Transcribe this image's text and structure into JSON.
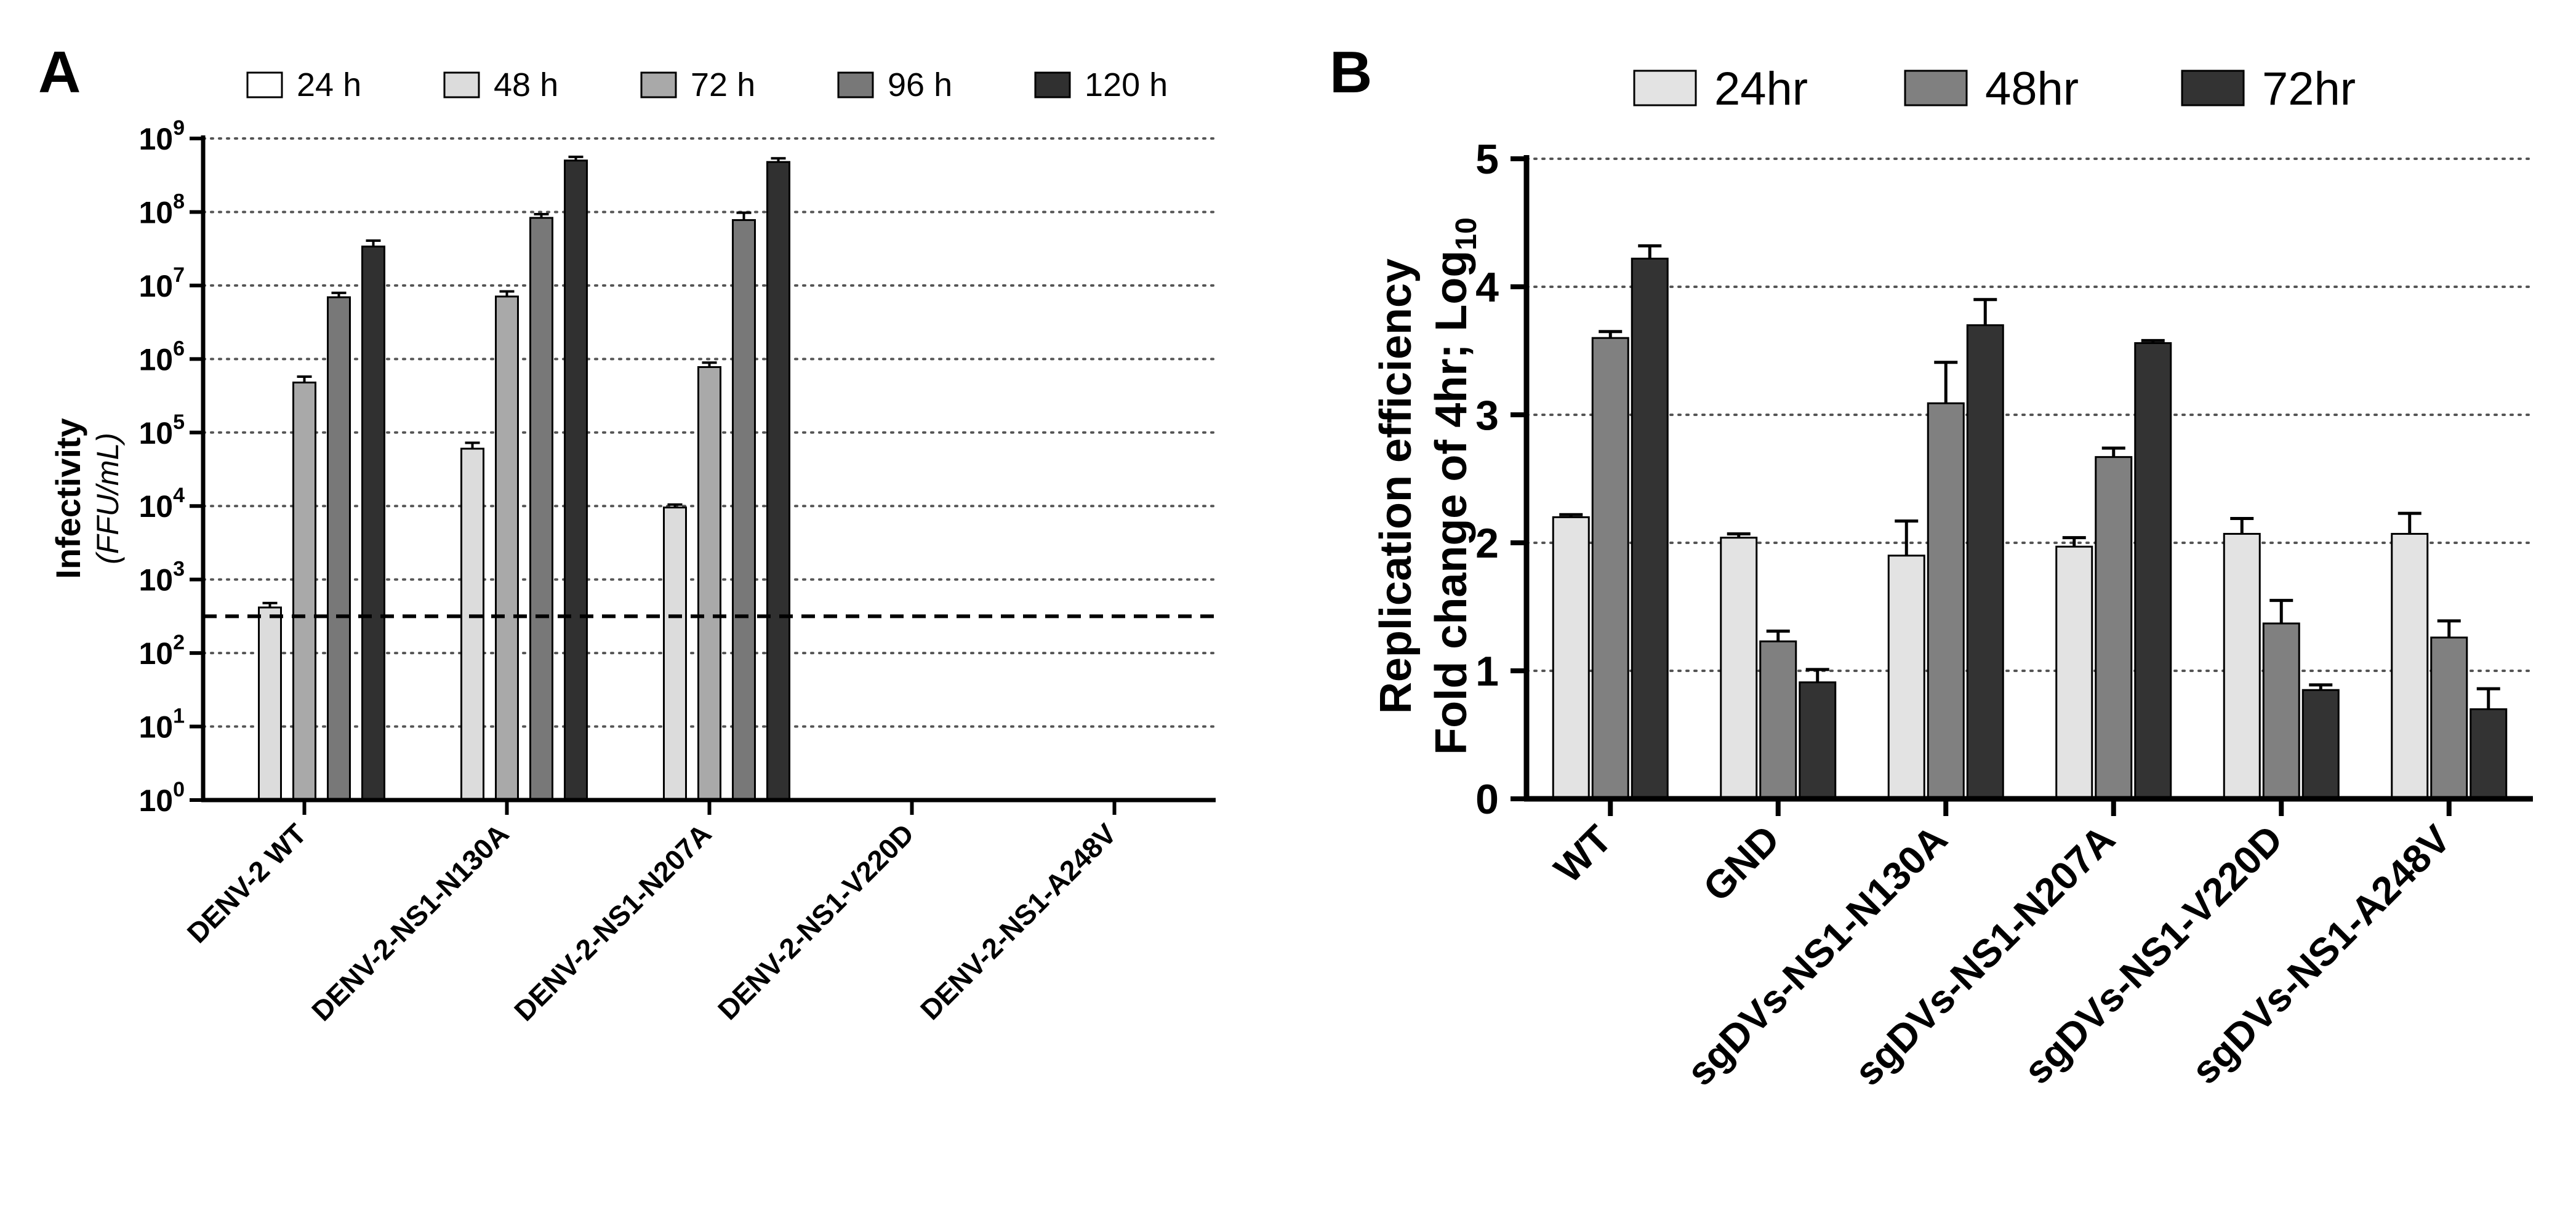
{
  "colors": {
    "c24": "#ffffff",
    "c48": "#dcdcdc",
    "c72": "#a9a9a9",
    "c96": "#787878",
    "c120": "#303030",
    "b24": "#e3e3e3",
    "b48": "#808080",
    "b72": "#333333",
    "axis": "#000000",
    "grid": "#555555"
  },
  "chart_data": [
    {
      "panel": "A",
      "type": "bar",
      "scale": "log10",
      "ylabel": "Infectivity",
      "ylabel_units": "(FFU/mL)",
      "ylim": [
        0,
        9
      ],
      "yticks": [
        "10",
        "10",
        "10",
        "10",
        "10",
        "10",
        "10",
        "10",
        "10",
        "10"
      ],
      "ytick_exps": [
        "0",
        "1",
        "2",
        "3",
        "4",
        "5",
        "6",
        "7",
        "8",
        "9"
      ],
      "grid": true,
      "detection_limit_log10": 2.5,
      "categories": [
        "DENV-2 WT",
        "DENV-2-NS1-N130A",
        "DENV-2-NS1-N207A",
        "DENV-2-NS1-V220D",
        "DENV-2-NS1-A248V"
      ],
      "series": [
        {
          "name": "24 h",
          "log10_values": [
            null,
            null,
            null,
            null,
            null
          ],
          "log10_errors": [
            null,
            null,
            null,
            null,
            null
          ]
        },
        {
          "name": "48 h",
          "log10_values": [
            2.62,
            4.78,
            3.98,
            null,
            null
          ],
          "log10_errors": [
            0.06,
            0.08,
            0.04,
            null,
            null
          ]
        },
        {
          "name": "72 h",
          "log10_values": [
            5.68,
            6.85,
            5.89,
            null,
            null
          ],
          "log10_errors": [
            0.08,
            0.07,
            0.06,
            null,
            null
          ]
        },
        {
          "name": "96 h",
          "log10_values": [
            6.84,
            7.92,
            7.89,
            null,
            null
          ],
          "log10_errors": [
            0.06,
            0.05,
            0.1,
            null,
            null
          ]
        },
        {
          "name": "120 h",
          "log10_values": [
            7.53,
            8.7,
            8.68,
            null,
            null
          ],
          "log10_errors": [
            0.08,
            0.05,
            0.05,
            null,
            null
          ]
        }
      ],
      "legend_position": "top"
    },
    {
      "panel": "B",
      "type": "bar",
      "ylabel_line1": "Replication efficiency",
      "ylabel_line2": "Fold change of 4hr;  Log",
      "ylabel_sub": "10",
      "ylim": [
        0,
        5
      ],
      "yticks": [
        "0",
        "1",
        "2",
        "3",
        "4",
        "5"
      ],
      "grid": true,
      "categories": [
        "WT",
        "GND",
        "sgDVs-NS1-N130A",
        "sgDVs-NS1-N207A",
        "sgDVs-NS1-V220D",
        "sgDVs-NS1-A248V"
      ],
      "series": [
        {
          "name": "24hr",
          "values": [
            2.2,
            2.04,
            1.9,
            1.97,
            2.07,
            2.07
          ],
          "errors": [
            0.02,
            0.03,
            0.27,
            0.07,
            0.12,
            0.16
          ]
        },
        {
          "name": "48hr",
          "values": [
            3.6,
            1.23,
            3.09,
            2.67,
            1.37,
            1.26
          ],
          "errors": [
            0.05,
            0.08,
            0.32,
            0.07,
            0.18,
            0.13
          ]
        },
        {
          "name": "72hr",
          "values": [
            4.22,
            0.91,
            3.7,
            3.56,
            0.85,
            0.7
          ],
          "errors": [
            0.1,
            0.1,
            0.2,
            0.02,
            0.04,
            0.16
          ]
        }
      ],
      "legend_position": "top"
    }
  ],
  "panel_labels": {
    "a": "A",
    "b": "B"
  }
}
